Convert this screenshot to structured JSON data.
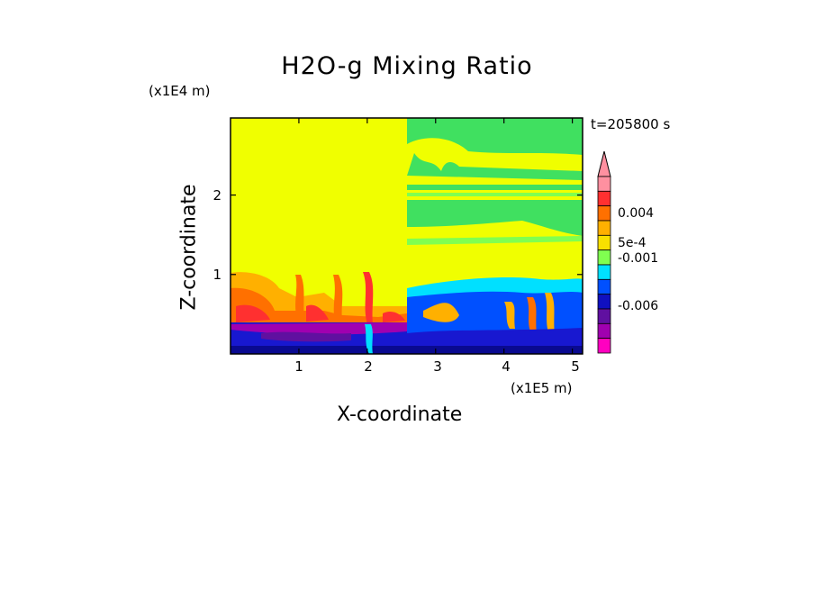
{
  "chart_data": {
    "type": "heatmap",
    "title": "H2O-g Mixing Ratio",
    "xlabel": "X-coordinate",
    "ylabel": "Z-coordinate",
    "x_scale_label": "(x1E5 m)",
    "y_scale_label": "(x1E4 m)",
    "timestamp": "t=205800 s",
    "xlim": [
      0,
      5.15
    ],
    "ylim": [
      0,
      2.97
    ],
    "x_ticks": [
      "1",
      "2",
      "3",
      "4",
      "5"
    ],
    "y_ticks": [
      "1",
      "2"
    ],
    "colorbar": {
      "labels": [
        "0.004",
        "5e-4",
        "-0.001",
        "-0.006"
      ],
      "colors": [
        "#ff90a0",
        "#ff3030",
        "#ff7000",
        "#ffb000",
        "#f8e000",
        "#80ff50",
        "#00e0ff",
        "#0050ff",
        "#1010c0",
        "#6010a0",
        "#a000b0",
        "#ff00c0"
      ]
    },
    "regions": {
      "background_upper_left": "#f0ff00",
      "upper_right_moist_bands": "#40e060",
      "lower_left_warm_band": "#ff5010",
      "surface_layer": "#1818d0"
    }
  }
}
